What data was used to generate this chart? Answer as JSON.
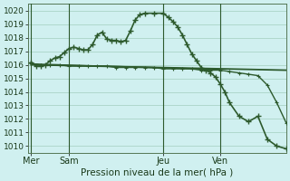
{
  "background_color": "#d0f0f0",
  "grid_color": "#b0d8cc",
  "line_color": "#2d5a2d",
  "marker_color": "#2d5a2d",
  "title": "Pression niveau de la mer( hPa )",
  "ylim": [
    1009.5,
    1020.5
  ],
  "yticks": [
    1010,
    1011,
    1012,
    1013,
    1014,
    1015,
    1016,
    1017,
    1018,
    1019,
    1020
  ],
  "xtick_labels": [
    "Mer",
    "Sam",
    "Jeu",
    "Ven"
  ],
  "xtick_positions": [
    0,
    4,
    14,
    20
  ],
  "vline_positions": [
    0,
    4,
    14,
    20
  ],
  "xlim": [
    -0.3,
    27
  ],
  "line1_x": [
    0,
    0.5,
    1,
    1.5,
    2,
    2.5,
    3,
    3.5,
    4,
    4.5,
    5,
    5.5,
    6,
    6.5,
    7,
    7.5,
    8,
    8.5,
    9,
    9.5,
    10,
    10.5,
    11,
    11.5,
    12,
    13,
    14,
    14.5,
    15,
    15.5,
    16,
    16.5,
    17,
    17.5,
    18,
    18.5,
    19,
    19.5,
    20,
    20.5,
    21,
    22,
    23,
    24,
    25,
    26,
    27
  ],
  "line1_y": [
    1016.2,
    1015.9,
    1015.9,
    1016.0,
    1016.3,
    1016.5,
    1016.6,
    1016.9,
    1017.2,
    1017.3,
    1017.2,
    1017.1,
    1017.1,
    1017.5,
    1018.2,
    1018.4,
    1017.9,
    1017.8,
    1017.8,
    1017.7,
    1017.8,
    1018.5,
    1019.3,
    1019.7,
    1019.8,
    1019.8,
    1019.8,
    1019.5,
    1019.2,
    1018.8,
    1018.2,
    1017.5,
    1016.8,
    1016.3,
    1015.8,
    1015.6,
    1015.4,
    1015.1,
    1014.6,
    1014.0,
    1013.2,
    1012.2,
    1011.8,
    1012.2,
    1010.5,
    1010.0,
    1009.8
  ],
  "line2_x": [
    0,
    1,
    2,
    3,
    4,
    5,
    6,
    7,
    8,
    9,
    10,
    11,
    12,
    13,
    14,
    15,
    16,
    17,
    18,
    19,
    20,
    21,
    22,
    23,
    24,
    25,
    26,
    27
  ],
  "line2_y": [
    1016.1,
    1016.0,
    1016.0,
    1016.0,
    1015.9,
    1015.9,
    1015.9,
    1015.9,
    1015.9,
    1015.8,
    1015.8,
    1015.8,
    1015.8,
    1015.8,
    1015.7,
    1015.7,
    1015.7,
    1015.7,
    1015.6,
    1015.6,
    1015.6,
    1015.5,
    1015.4,
    1015.3,
    1015.2,
    1014.5,
    1013.2,
    1011.7
  ],
  "line3_x": [
    0,
    27
  ],
  "line3_y": [
    1016.0,
    1015.6
  ],
  "line4_x": [
    0,
    20
  ],
  "line4_y": [
    1016.05,
    1015.65
  ]
}
